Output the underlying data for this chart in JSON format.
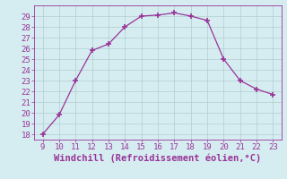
{
  "x": [
    9,
    10,
    11,
    12,
    13,
    14,
    15,
    16,
    17,
    18,
    19,
    20,
    21,
    22,
    23
  ],
  "y": [
    18,
    19.8,
    23,
    25.8,
    26.4,
    28,
    29,
    29.1,
    29.3,
    29,
    28.6,
    25,
    23,
    22.2,
    21.7
  ],
  "line_color": "#993399",
  "marker": "+",
  "marker_size": 4,
  "bg_color": "#d5edf0",
  "grid_color": "#b0ccd0",
  "xlabel": "Windchill (Refroidissement éolien,°C)",
  "xlabel_color": "#993399",
  "tick_color": "#993399",
  "spine_color": "#993399",
  "xlim": [
    8.5,
    23.5
  ],
  "ylim": [
    17.5,
    30.0
  ],
  "xticks": [
    9,
    10,
    11,
    12,
    13,
    14,
    15,
    16,
    17,
    18,
    19,
    20,
    21,
    22,
    23
  ],
  "yticks": [
    18,
    19,
    20,
    21,
    22,
    23,
    24,
    25,
    26,
    27,
    28,
    29
  ],
  "tick_fontsize": 6.5,
  "xlabel_fontsize": 7.5
}
